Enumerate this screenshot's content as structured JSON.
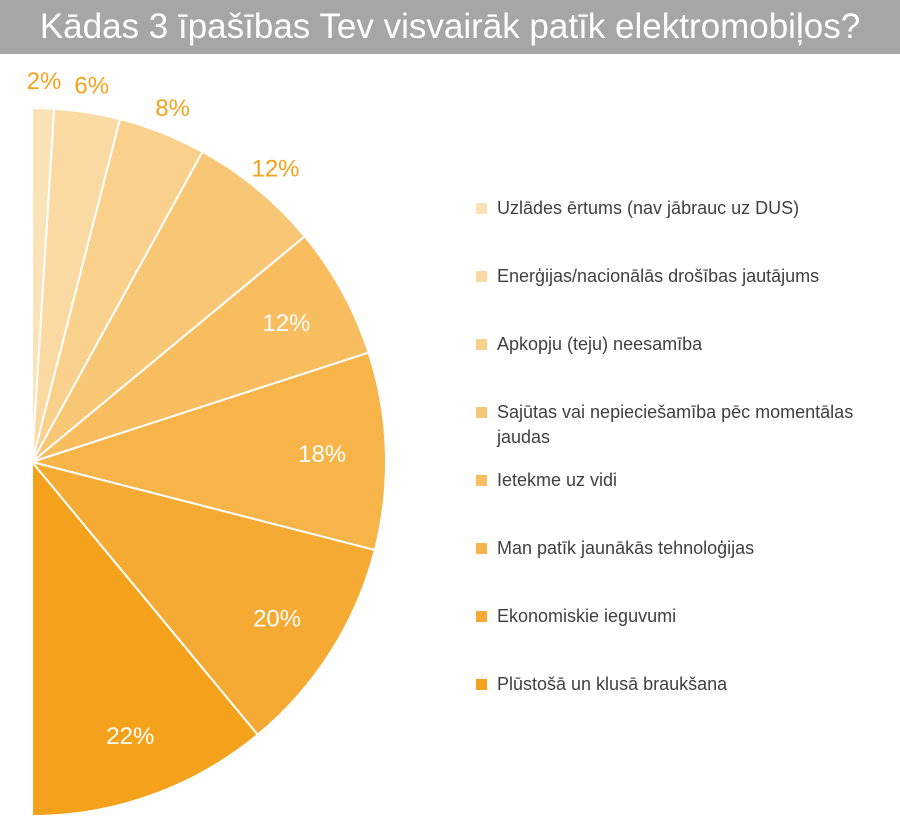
{
  "title": "Kādas 3 īpašības Tev visvairāk patīk elektromobiļos?",
  "chart_data": {
    "type": "pie",
    "title": "Kādas 3 īpašības Tev visvairāk patīk elektromobiļos?",
    "slices": [
      {
        "label": "Uzlādes ērtums (nav jābrauc uz DUS)",
        "value": 2,
        "data_label": "2%",
        "color": "#fbe3b8"
      },
      {
        "label": "Enerģijas/nacionālās drošības jautājums",
        "value": 6,
        "data_label": "6%",
        "color": "#fad9a2"
      },
      {
        "label": "Apkopju (teju) neesamība",
        "value": 8,
        "data_label": "8%",
        "color": "#f9d08c"
      },
      {
        "label": "Sajūtas vai nepieciešamība pēc momentālas jaudas",
        "value": 12,
        "data_label": "12%",
        "color": "#f8c776"
      },
      {
        "label": "Ietekme uz vidi",
        "value": 12,
        "data_label": "12%",
        "color": "#f7bd5f"
      },
      {
        "label": "Man patīk jaunākās tehnoloģijas",
        "value": 18,
        "data_label": "18%",
        "color": "#f6b449"
      },
      {
        "label": "Ekonomiskie ieguvumi",
        "value": 20,
        "data_label": "20%",
        "color": "#f5ab33"
      },
      {
        "label": "Plūstošā un klusā braukšana",
        "value": 22,
        "data_label": "22%",
        "color": "#f4a21c"
      }
    ],
    "legend_position": "right",
    "label_color_outside": "#f4a21c",
    "label_color_inside": "#ffffff"
  }
}
